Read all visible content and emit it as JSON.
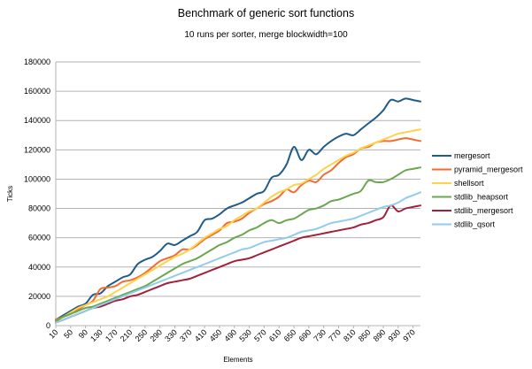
{
  "chart_data": {
    "type": "line",
    "title": "Benchmark of generic sort functions",
    "subtitle": "10 runs per sorter, merge blockwidth=100",
    "xlabel": "Elements",
    "ylabel": "Ticks",
    "ylim": [
      0,
      180000
    ],
    "yticks": [
      "0",
      "20000",
      "40000",
      "60000",
      "80000",
      "100000",
      "120000",
      "140000",
      "160000",
      "180000"
    ],
    "x": [
      10,
      30,
      50,
      70,
      90,
      110,
      130,
      150,
      170,
      190,
      210,
      230,
      250,
      270,
      290,
      310,
      330,
      350,
      370,
      390,
      410,
      430,
      450,
      470,
      490,
      510,
      530,
      550,
      570,
      590,
      610,
      630,
      650,
      670,
      690,
      710,
      730,
      750,
      770,
      790,
      810,
      830,
      850,
      870,
      890,
      910,
      930,
      950,
      970,
      990
    ],
    "xtick_labels": [
      "10",
      "50",
      "90",
      "130",
      "170",
      "210",
      "250",
      "290",
      "330",
      "370",
      "410",
      "450",
      "490",
      "530",
      "570",
      "610",
      "650",
      "690",
      "730",
      "770",
      "810",
      "850",
      "890",
      "930",
      "970"
    ],
    "grid": true,
    "legend_position": "right",
    "series": [
      {
        "name": "mergesort",
        "color": "#1f5c8b",
        "values": [
          4000,
          7000,
          10000,
          13000,
          15000,
          21000,
          22000,
          27000,
          30000,
          33000,
          35000,
          42000,
          45000,
          47000,
          51000,
          56000,
          55000,
          58000,
          61000,
          64000,
          72000,
          73000,
          76000,
          80000,
          82000,
          84000,
          87000,
          90000,
          92000,
          101000,
          103000,
          110000,
          122000,
          113000,
          120000,
          117000,
          122000,
          126000,
          129000,
          131000,
          130000,
          134000,
          138000,
          142000,
          147000,
          154000,
          153000,
          155000,
          154000,
          153000
        ]
      },
      {
        "name": "pyramid_mergesort",
        "color": "#f26b2f",
        "values": [
          4000,
          6000,
          8000,
          11000,
          14000,
          17000,
          25000,
          26000,
          27000,
          30000,
          31000,
          33000,
          36000,
          40000,
          44000,
          46000,
          48000,
          52000,
          52000,
          55000,
          59000,
          62000,
          65000,
          70000,
          71000,
          73000,
          77000,
          80000,
          83000,
          85000,
          88000,
          93000,
          91000,
          96000,
          99000,
          98000,
          103000,
          106000,
          111000,
          115000,
          117000,
          121000,
          122000,
          125000,
          126000,
          126000,
          127000,
          128000,
          127000,
          126000
        ]
      },
      {
        "name": "shellsort",
        "color": "#ffd24a",
        "values": [
          3000,
          6000,
          9000,
          12000,
          14000,
          16000,
          18000,
          20000,
          23000,
          26000,
          29000,
          32000,
          35000,
          38000,
          41000,
          44000,
          47000,
          49000,
          52000,
          56000,
          60000,
          63000,
          66000,
          68000,
          72000,
          75000,
          78000,
          80000,
          84000,
          88000,
          91000,
          93000,
          96000,
          97000,
          100000,
          103000,
          107000,
          110000,
          113000,
          116000,
          118000,
          121000,
          123000,
          125000,
          127000,
          129000,
          131000,
          132000,
          133000,
          134000
        ]
      },
      {
        "name": "stdlib_heapsort",
        "color": "#6aa84f",
        "values": [
          3000,
          6000,
          8000,
          10000,
          12000,
          13000,
          15000,
          17000,
          19000,
          21000,
          23000,
          25000,
          27000,
          30000,
          33000,
          36000,
          39000,
          42000,
          44000,
          46000,
          49000,
          52000,
          55000,
          57000,
          60000,
          62000,
          65000,
          67000,
          70000,
          72000,
          70000,
          72000,
          73000,
          76000,
          79000,
          80000,
          82000,
          85000,
          86000,
          88000,
          90000,
          92000,
          99000,
          98000,
          98000,
          100000,
          103000,
          106000,
          107000,
          108000
        ]
      },
      {
        "name": "stdlib_mergesort",
        "color": "#a3203a",
        "values": [
          2000,
          4000,
          6000,
          8000,
          10000,
          12000,
          13000,
          15000,
          17000,
          18000,
          20000,
          21000,
          23000,
          25000,
          27000,
          29000,
          30000,
          31000,
          32000,
          34000,
          36000,
          38000,
          40000,
          42000,
          44000,
          45000,
          46000,
          48000,
          50000,
          52000,
          54000,
          56000,
          58000,
          60000,
          61000,
          62000,
          63000,
          64000,
          65000,
          66000,
          67000,
          69000,
          70000,
          72000,
          74000,
          82000,
          78000,
          80000,
          81000,
          82000
        ]
      },
      {
        "name": "stdlib_qsort",
        "color": "#92ccec",
        "values": [
          2000,
          4000,
          6000,
          8000,
          10000,
          12000,
          14000,
          16000,
          18000,
          20000,
          22000,
          24000,
          26000,
          28000,
          30000,
          32000,
          34000,
          36000,
          38000,
          40000,
          42000,
          44000,
          46000,
          48000,
          50000,
          52000,
          53000,
          55000,
          57000,
          58000,
          59000,
          60000,
          62000,
          64000,
          65000,
          66000,
          68000,
          70000,
          71000,
          72000,
          73000,
          75000,
          77000,
          79000,
          81000,
          82000,
          84000,
          87000,
          89000,
          91000
        ]
      }
    ]
  }
}
